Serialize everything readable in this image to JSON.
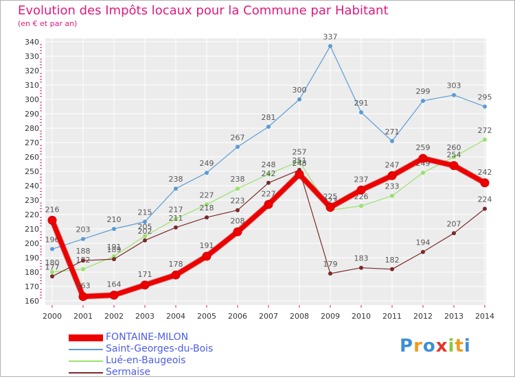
{
  "header": {
    "title": "Evolution des Impôts locaux pour la Commune par Habitant",
    "subtitle": "(en € et par an)"
  },
  "logo": {
    "text": "Proxiti",
    "colors": [
      "#3d8fd6",
      "#f29a1f",
      "#3d8fd6",
      "#e5332a",
      "#8cc63f",
      "#f29a1f",
      "#3d8fd6"
    ]
  },
  "chart_data": {
    "type": "line",
    "title": "Evolution des Impôts locaux pour la Commune par Habitant",
    "subtitle": "(en € et par an)",
    "xlabel": "",
    "ylabel": "",
    "ylim": [
      160,
      340
    ],
    "yticks": [
      160,
      170,
      180,
      190,
      200,
      210,
      220,
      230,
      240,
      250,
      260,
      270,
      280,
      290,
      300,
      310,
      320,
      330,
      340
    ],
    "x": [
      "2000",
      "2001",
      "2002",
      "2003",
      "2004",
      "2005",
      "2006",
      "2007",
      "2008",
      "2009",
      "2010",
      "2011",
      "2012",
      "2013",
      "2014"
    ],
    "grid": true,
    "legend_position": "bottom-left",
    "series": [
      {
        "name": "FONTAINE-MILON",
        "color": "#ee0000",
        "values": [
          216,
          163,
          164,
          171,
          178,
          191,
          208,
          227,
          248,
          225,
          237,
          247,
          259,
          254,
          242
        ]
      },
      {
        "name": "Saint-Georges-du-Bois",
        "color": "#5b9bd5",
        "values": [
          196,
          203,
          210,
          215,
          238,
          249,
          267,
          281,
          300,
          337,
          291,
          271,
          299,
          303,
          295
        ]
      },
      {
        "name": "Lué-en-Baugeois",
        "color": "#99e26b",
        "values": [
          180,
          182,
          191,
          205,
          217,
          227,
          238,
          248,
          257,
          223,
          226,
          233,
          249,
          260,
          272
        ]
      },
      {
        "name": "Sermaise",
        "color": "#7b2a2a",
        "values": [
          177,
          188,
          189,
          202,
          211,
          218,
          223,
          242,
          251,
          179,
          183,
          182,
          194,
          207,
          224
        ]
      }
    ]
  }
}
